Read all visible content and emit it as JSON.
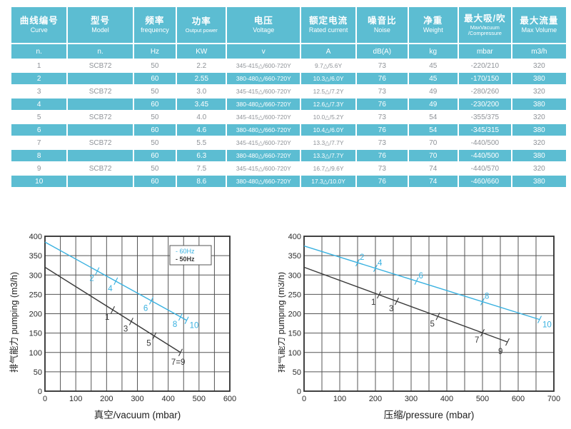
{
  "table": {
    "columns": [
      {
        "zh": "曲线编号",
        "en": "Curve",
        "unit": "n."
      },
      {
        "zh": "型号",
        "en": "Model",
        "unit": "n."
      },
      {
        "zh": "频率",
        "en": "frequency",
        "unit": "Hz"
      },
      {
        "zh": "功率",
        "en": "Output power",
        "unit": "KW",
        "small_en": true
      },
      {
        "zh": "电压",
        "en": "Voltage",
        "unit": "v"
      },
      {
        "zh": "额定电流",
        "en": "Rated current",
        "unit": "A"
      },
      {
        "zh": "噪音比",
        "en": "Noise",
        "unit": "dB(A)"
      },
      {
        "zh": "净重",
        "en": "Weight",
        "unit": "kg"
      },
      {
        "zh": "最大吸/吹",
        "en": "MaxVacuum /Compressure",
        "unit": "mbar",
        "small_en": true
      },
      {
        "zh": "最大流量",
        "en": "Max Volume",
        "unit": "m3/h"
      }
    ],
    "rows": [
      [
        "1",
        "SCB72",
        "50",
        "2.2",
        "345-415△/600-720Y",
        "9.7△/5.6Y",
        "73",
        "45",
        "-220/210",
        "320"
      ],
      [
        "2",
        "",
        "60",
        "2.55",
        "380-480△/660-720Y",
        "10.3△/6.0Y",
        "76",
        "45",
        "-170/150",
        "380"
      ],
      [
        "3",
        "SCB72",
        "50",
        "3.0",
        "345-415△/600-720Y",
        "12.5△/7.2Y",
        "73",
        "49",
        "-280/260",
        "320"
      ],
      [
        "4",
        "",
        "60",
        "3.45",
        "380-480△/660-720Y",
        "12.6△/7.3Y",
        "76",
        "49",
        "-230/200",
        "380"
      ],
      [
        "5",
        "SCB72",
        "50",
        "4.0",
        "345-415△/600-720Y",
        "10.0△/5.2Y",
        "73",
        "54",
        "-355/375",
        "320"
      ],
      [
        "6",
        "",
        "60",
        "4.6",
        "380-480△/660-720Y",
        "10.4△/6.0Y",
        "76",
        "54",
        "-345/315",
        "380"
      ],
      [
        "7",
        "SCB72",
        "50",
        "5.5",
        "345-415△/600-720Y",
        "13.3△/7.7Y",
        "73",
        "70",
        "-440/500",
        "320"
      ],
      [
        "8",
        "",
        "60",
        "6.3",
        "380-480△/660-720Y",
        "13.3△/7.7Y",
        "76",
        "70",
        "-440/500",
        "380"
      ],
      [
        "9",
        "SCB72",
        "50",
        "7.5",
        "345-415△/600-720Y",
        "16.7△/9.6Y",
        "73",
        "74",
        "-440/570",
        "320"
      ],
      [
        "10",
        "",
        "60",
        "8.6",
        "380-480△/660-720Y",
        "17.3△/10.0Y",
        "76",
        "74",
        "-460/660",
        "380"
      ]
    ],
    "accent_color": "#5cbdd2"
  },
  "chart_data": [
    {
      "type": "line",
      "name": "vacuum-chart",
      "xlabel": "真空/vacuum（mbar）",
      "xlabel_plain": "真空/vacuum (mbar)",
      "ylabel": "排气能力 pumping (m3/h)",
      "xlim": [
        0,
        600
      ],
      "ylim": [
        0,
        400
      ],
      "xtick": 100,
      "ytick": 50,
      "grid_step": 50,
      "grid": "on",
      "legend": [
        {
          "label": "- 60Hz",
          "color": "#39b1e0"
        },
        {
          "label": "- 50Hz",
          "color": "#3a3a3a"
        }
      ],
      "series": [
        {
          "name": "60Hz",
          "color": "#39b1e0",
          "points": [
            [
              0,
              385
            ],
            [
              460,
              183
            ]
          ],
          "marks": [
            {
              "x": 170,
              "label": "2",
              "pos": "below"
            },
            {
              "x": 230,
              "label": "4",
              "pos": "below"
            },
            {
              "x": 345,
              "label": "6",
              "pos": "below"
            },
            {
              "x": 440,
              "label": "8",
              "pos": "below"
            },
            {
              "x": 460,
              "label": "10",
              "pos": "end"
            }
          ]
        },
        {
          "name": "50Hz",
          "color": "#3a3a3a",
          "points": [
            [
              0,
              320
            ],
            [
              440,
              100
            ]
          ],
          "marks": [
            {
              "x": 220,
              "label": "1",
              "pos": "below"
            },
            {
              "x": 280,
              "label": "3",
              "pos": "below"
            },
            {
              "x": 355,
              "label": "5",
              "pos": "below"
            },
            {
              "x": 440,
              "label": "7=9",
              "pos": "below-end"
            }
          ]
        }
      ]
    },
    {
      "type": "line",
      "name": "pressure-chart",
      "xlabel": "压缩/pressure（mbar）",
      "xlabel_plain": "压缩/pressure (mbar)",
      "ylabel": "排气能力 pumping (m3/h)",
      "xlim": [
        0,
        700
      ],
      "ylim": [
        0,
        400
      ],
      "xtick": 100,
      "ytick": 50,
      "grid_step": 50,
      "grid": "on",
      "series": [
        {
          "name": "60Hz",
          "color": "#39b1e0",
          "points": [
            [
              0,
              375
            ],
            [
              660,
              185
            ]
          ],
          "marks": [
            {
              "x": 150,
              "label": "2",
              "pos": "above"
            },
            {
              "x": 200,
              "label": "4",
              "pos": "above"
            },
            {
              "x": 315,
              "label": "6",
              "pos": "above"
            },
            {
              "x": 500,
              "label": "8",
              "pos": "above"
            },
            {
              "x": 660,
              "label": "10",
              "pos": "end"
            }
          ]
        },
        {
          "name": "50Hz",
          "color": "#3a3a3a",
          "points": [
            [
              0,
              320
            ],
            [
              570,
              127
            ]
          ],
          "marks": [
            {
              "x": 210,
              "label": "1",
              "pos": "below"
            },
            {
              "x": 260,
              "label": "3",
              "pos": "below"
            },
            {
              "x": 375,
              "label": "5",
              "pos": "below"
            },
            {
              "x": 500,
              "label": "7",
              "pos": "below"
            },
            {
              "x": 570,
              "label": "9",
              "pos": "below-end"
            }
          ]
        }
      ]
    }
  ]
}
